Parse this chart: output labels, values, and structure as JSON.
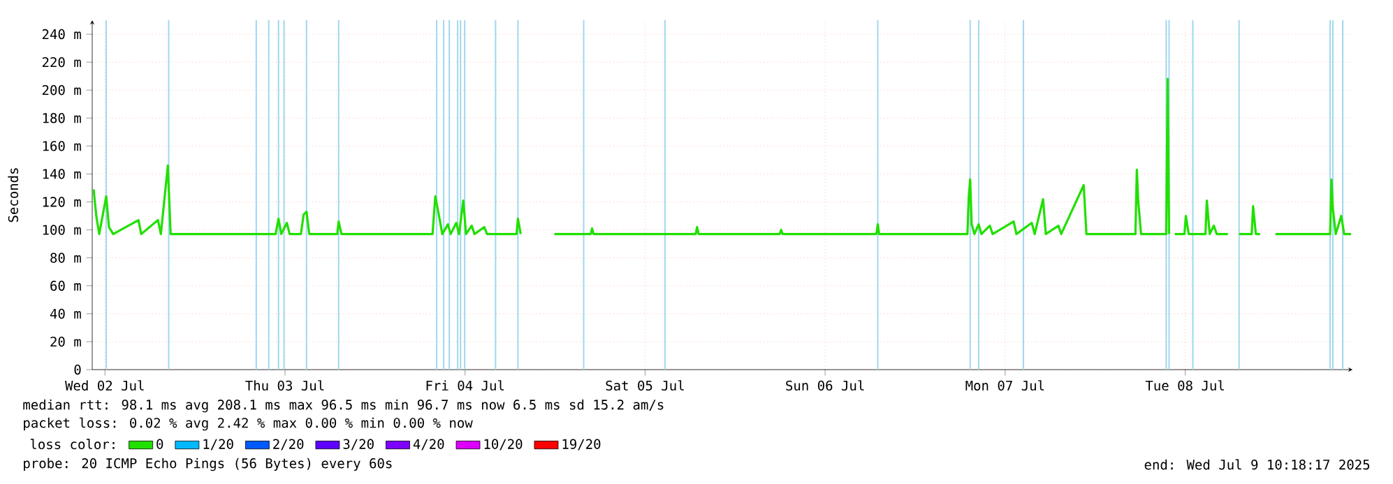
{
  "chart_data": {
    "type": "line",
    "ylabel": "Seconds",
    "x": [
      "2025-07-02T10:29",
      "2025-07-02T10:52",
      "2025-07-02T11:14",
      "2025-07-02T12:10",
      "2025-07-02T12:32",
      "2025-07-02T13:06",
      "2025-07-02T16:28",
      "2025-07-02T16:50",
      "2025-07-02T19:04",
      "2025-07-02T19:27",
      "2025-07-02T20:23",
      "2025-07-02T20:45",
      "2025-07-03T10:45",
      "2025-07-03T11:08",
      "2025-07-03T11:30",
      "2025-07-03T12:15",
      "2025-07-03T12:37",
      "2025-07-03T14:07",
      "2025-07-03T14:29",
      "2025-07-03T14:52",
      "2025-07-03T15:14",
      "2025-07-03T18:58",
      "2025-07-03T19:09",
      "2025-07-03T19:32",
      "2025-07-04T07:40",
      "2025-07-04T08:02",
      "2025-07-04T08:36",
      "2025-07-04T08:58",
      "2025-07-04T09:43",
      "2025-07-04T10:05",
      "2025-07-04T10:50",
      "2025-07-04T11:12",
      "2025-07-04T11:46",
      "2025-07-04T12:08",
      "2025-07-04T12:53",
      "2025-07-04T13:16",
      "2025-07-04T14:34",
      "2025-07-04T14:56",
      "2025-07-04T18:52",
      "2025-07-04T19:03",
      "2025-07-04T19:25",
      "2025-07-04T19:37",
      "2025-07-04T20:32",
      "2025-07-04T21:17",
      "2025-07-04T21:28",
      "2025-07-04T23:54",
      "2025-07-05T04:45",
      "2025-07-05T04:56",
      "2025-07-05T05:08",
      "2025-07-05T18:45",
      "2025-07-05T18:56",
      "2025-07-05T19:08",
      "2025-07-06T05:57",
      "2025-07-06T06:08",
      "2025-07-06T06:20",
      "2025-07-06T18:50",
      "2025-07-06T19:01",
      "2025-07-06T19:12",
      "2025-07-07T06:58",
      "2025-07-07T07:09",
      "2025-07-07T07:20",
      "2025-07-07T07:32",
      "2025-07-07T07:54",
      "2025-07-07T08:28",
      "2025-07-07T08:50",
      "2025-07-07T09:57",
      "2025-07-07T10:20",
      "2025-07-07T13:08",
      "2025-07-07T13:30",
      "2025-07-07T15:33",
      "2025-07-07T15:56",
      "2025-07-07T17:03",
      "2025-07-07T17:25",
      "2025-07-07T19:06",
      "2025-07-07T19:28",
      "2025-07-07T22:28",
      "2025-07-07T22:50",
      "2025-07-08T05:22",
      "2025-07-08T05:33",
      "2025-07-08T05:44",
      "2025-07-08T06:07",
      "2025-07-08T09:28",
      "2025-07-08T09:40",
      "2025-07-08T09:51",
      "2025-07-08T10:02",
      "2025-07-08T10:36",
      "2025-07-08T11:54",
      "2025-07-08T12:05",
      "2025-07-08T12:28",
      "2025-07-08T14:42",
      "2025-07-08T14:53",
      "2025-07-08T15:16",
      "2025-07-08T15:49",
      "2025-07-08T16:12",
      "2025-07-08T17:41",
      "2025-07-08T17:52",
      "2025-07-08T19:11",
      "2025-07-08T20:52",
      "2025-07-08T21:03",
      "2025-07-08T21:25",
      "2025-07-08T21:59",
      "2025-07-08T22:10",
      "2025-07-09T00:02",
      "2025-07-09T07:19",
      "2025-07-09T07:30",
      "2025-07-09T07:41",
      "2025-07-09T08:04",
      "2025-07-09T08:48",
      "2025-07-09T09:11",
      "2025-07-09T10:07"
    ],
    "series": [
      {
        "name": "0",
        "color": "#20e000",
        "values": [
          129,
          109,
          97,
          124,
          102,
          97,
          107,
          97,
          107,
          97,
          146,
          97,
          97,
          108,
          97,
          105,
          97,
          97,
          111,
          113,
          97,
          97,
          106,
          97,
          97,
          124,
          108,
          97,
          104,
          97,
          105,
          97,
          121,
          97,
          103,
          97,
          102,
          97,
          97,
          108,
          97,
          null,
          null,
          null,
          null,
          97,
          97,
          101,
          97,
          97,
          102,
          97,
          97,
          100,
          97,
          97,
          104,
          97,
          97,
          124,
          136,
          104,
          97,
          104,
          97,
          103,
          97,
          106,
          97,
          105,
          97,
          122,
          97,
          103,
          97,
          132,
          97,
          97,
          143,
          121,
          97,
          97,
          208,
          97,
          null,
          97,
          97,
          110,
          97,
          97,
          121,
          97,
          103,
          97,
          97,
          null,
          97,
          97,
          117,
          97,
          97,
          null,
          97,
          97,
          136,
          115,
          97,
          110,
          97,
          97
        ]
      },
      {
        "name": "1/20",
        "color": "#00b8ff",
        "values": [
          null,
          null,
          null,
          null,
          null,
          null,
          null,
          null,
          null,
          null,
          null,
          null,
          null,
          null,
          null,
          null,
          null,
          null,
          null,
          null,
          null,
          null,
          null,
          null,
          null,
          null,
          null,
          null,
          null,
          null,
          null,
          null,
          null,
          null,
          null,
          null,
          null,
          null,
          null,
          null,
          null,
          null,
          null,
          null,
          null,
          null,
          null,
          null,
          null,
          null,
          null,
          null,
          null,
          null,
          null,
          null,
          null,
          null,
          null,
          null,
          null,
          null,
          null,
          null,
          null,
          null,
          null,
          null,
          null,
          null,
          null,
          null,
          null,
          null,
          null,
          null,
          null,
          null,
          null,
          null,
          null,
          null,
          null,
          null,
          null,
          null,
          null,
          null,
          null,
          null,
          null,
          null,
          null,
          null,
          null,
          null,
          null,
          null,
          null,
          null,
          null,
          null,
          null,
          null,
          null,
          null,
          null,
          null,
          null,
          null
        ]
      },
      {
        "name": "2/20",
        "color": "#0059ff",
        "values": [
          null,
          null,
          null,
          null,
          null,
          null,
          null,
          null,
          null,
          null,
          null,
          null,
          null,
          null,
          null,
          null,
          null,
          null,
          null,
          null,
          null,
          null,
          null,
          null,
          null,
          null,
          null,
          null,
          null,
          null,
          null,
          null,
          null,
          null,
          null,
          null,
          null,
          null,
          null,
          null,
          null,
          null,
          null,
          null,
          null,
          null,
          null,
          null,
          null,
          null,
          null,
          null,
          null,
          null,
          null,
          null,
          null,
          null,
          null,
          null,
          null,
          null,
          null,
          null,
          null,
          null,
          null,
          null,
          null,
          null,
          null,
          null,
          null,
          null,
          null,
          null,
          null,
          null,
          null,
          null,
          null,
          null,
          null,
          null,
          null,
          null,
          null,
          null,
          null,
          null,
          null,
          null,
          null,
          null,
          null,
          null,
          null,
          null,
          null,
          null,
          null,
          null,
          null,
          null,
          null,
          null,
          null,
          null,
          null,
          null
        ]
      },
      {
        "name": "3/20",
        "color": "#5e00ff",
        "values": [
          null,
          null,
          null,
          null,
          null,
          null,
          null,
          null,
          null,
          null,
          null,
          null,
          null,
          null,
          null,
          null,
          null,
          null,
          null,
          null,
          null,
          null,
          null,
          null,
          null,
          null,
          null,
          null,
          null,
          null,
          null,
          null,
          null,
          null,
          null,
          null,
          null,
          null,
          null,
          null,
          null,
          null,
          null,
          null,
          null,
          null,
          null,
          null,
          null,
          null,
          null,
          null,
          null,
          null,
          null,
          null,
          null,
          null,
          null,
          null,
          null,
          null,
          null,
          null,
          null,
          null,
          null,
          null,
          null,
          null,
          null,
          null,
          null,
          null,
          null,
          null,
          null,
          null,
          null,
          null,
          null,
          null,
          null,
          null,
          null,
          null,
          null,
          null,
          null,
          null,
          null,
          null,
          null,
          null,
          null,
          null,
          null,
          null,
          null,
          null,
          null,
          null,
          null,
          null,
          null,
          null,
          null,
          null,
          null,
          null
        ]
      },
      {
        "name": "4/20",
        "color": "#7e00ff",
        "values": [
          null,
          null,
          null,
          null,
          null,
          null,
          null,
          null,
          null,
          null,
          null,
          null,
          null,
          null,
          null,
          null,
          null,
          null,
          null,
          null,
          null,
          null,
          null,
          null,
          null,
          null,
          null,
          null,
          null,
          null,
          null,
          null,
          null,
          null,
          null,
          null,
          null,
          null,
          null,
          null,
          null,
          null,
          null,
          null,
          null,
          null,
          null,
          null,
          null,
          null,
          null,
          null,
          null,
          null,
          null,
          null,
          null,
          null,
          null,
          null,
          null,
          null,
          null,
          null,
          null,
          null,
          null,
          null,
          null,
          null,
          null,
          null,
          null,
          null,
          null,
          null,
          null,
          null,
          null,
          null,
          null,
          null,
          null,
          null,
          null,
          null,
          null,
          null,
          null,
          null,
          null,
          null,
          null,
          null,
          null,
          null,
          null,
          null,
          null,
          null,
          null,
          null,
          null,
          null,
          null,
          null,
          null,
          null,
          null,
          null
        ]
      },
      {
        "name": "10/20",
        "color": "#dd00ff",
        "values": [
          null,
          null,
          null,
          null,
          null,
          null,
          null,
          null,
          null,
          null,
          null,
          null,
          null,
          null,
          null,
          null,
          null,
          null,
          null,
          null,
          null,
          null,
          null,
          null,
          null,
          null,
          null,
          null,
          null,
          null,
          null,
          null,
          null,
          null,
          null,
          null,
          null,
          null,
          null,
          null,
          null,
          null,
          null,
          null,
          null,
          null,
          null,
          null,
          null,
          null,
          null,
          null,
          null,
          null,
          null,
          null,
          null,
          null,
          null,
          null,
          null,
          null,
          null,
          null,
          null,
          null,
          null,
          null,
          null,
          null,
          null,
          null,
          null,
          null,
          null,
          null,
          null,
          null,
          null,
          null,
          null,
          null,
          null,
          null,
          null,
          null,
          null,
          null,
          null,
          null,
          null,
          null,
          null,
          null,
          null,
          null,
          null,
          null,
          null,
          null,
          null,
          null,
          null,
          null,
          null,
          null,
          null,
          null,
          null,
          null
        ]
      },
      {
        "name": "19/20",
        "color": "#ff0000",
        "values": [
          null,
          null,
          null,
          null,
          null,
          null,
          null,
          null,
          null,
          null,
          null,
          null,
          null,
          null,
          null,
          null,
          null,
          null,
          null,
          null,
          null,
          null,
          null,
          null,
          null,
          null,
          null,
          null,
          null,
          null,
          null,
          null,
          null,
          null,
          null,
          null,
          null,
          null,
          null,
          null,
          null,
          null,
          null,
          null,
          null,
          null,
          null,
          null,
          null,
          null,
          null,
          null,
          null,
          null,
          null,
          null,
          null,
          null,
          null,
          null,
          null,
          null,
          null,
          null,
          null,
          null,
          null,
          null,
          null,
          null,
          null,
          null,
          null,
          null,
          null,
          null,
          null,
          null,
          null,
          null,
          null,
          null,
          null,
          null,
          null,
          null,
          null,
          null,
          null,
          null,
          null,
          null,
          null,
          null,
          null,
          null,
          null,
          null,
          null,
          null,
          null,
          null,
          null,
          null,
          null,
          null,
          null,
          null,
          null,
          null
        ]
      }
    ],
    "legend_title": "loss color:",
    "legend": "bottom",
    "grid": true,
    "xlim": [
      "2025-07-02T10:18",
      "2025-07-09T10:18"
    ],
    "xticks": [
      {
        "value": "2025-07-02T12:00",
        "label": "Wed 02 Jul"
      },
      {
        "value": "2025-07-03T12:00",
        "label": "Thu 03 Jul"
      },
      {
        "value": "2025-07-04T12:00",
        "label": "Fri 04 Jul"
      },
      {
        "value": "2025-07-05T12:00",
        "label": "Sat 05 Jul"
      },
      {
        "value": "2025-07-06T12:00",
        "label": "Sun 06 Jul"
      },
      {
        "value": "2025-07-07T12:00",
        "label": "Mon 07 Jul"
      },
      {
        "value": "2025-07-08T12:00",
        "label": "Tue 08 Jul"
      }
    ],
    "ylim": [
      0,
      250
    ],
    "yticks": [
      0,
      {
        "value": 20,
        "label": "20 m"
      },
      {
        "value": 40,
        "label": "40 m"
      },
      {
        "value": 60,
        "label": "60 m"
      },
      {
        "value": 80,
        "label": "80 m"
      },
      {
        "value": 100,
        "label": "100 m"
      },
      {
        "value": 120,
        "label": "120 m"
      },
      {
        "value": 140,
        "label": "140 m"
      },
      {
        "value": 160,
        "label": "160 m"
      },
      {
        "value": 180,
        "label": "180 m"
      },
      {
        "value": 200,
        "label": "200 m"
      },
      {
        "value": 220,
        "label": "220 m"
      },
      {
        "value": 240,
        "label": "240 m"
      }
    ],
    "ref_lines": [
      {
        "axis": "x",
        "value": "2025-07-02T12:10",
        "color": "#9fd8ee"
      },
      {
        "axis": "x",
        "value": "2025-07-02T20:30",
        "color": "#9fd8ee"
      },
      {
        "axis": "x",
        "value": "2025-07-03T08:10",
        "color": "#9fd8ee"
      },
      {
        "axis": "x",
        "value": "2025-07-03T09:50",
        "color": "#9fd8ee"
      },
      {
        "axis": "x",
        "value": "2025-07-03T11:08",
        "color": "#9fd8ee"
      },
      {
        "axis": "x",
        "value": "2025-07-03T11:52",
        "color": "#9fd8ee"
      },
      {
        "axis": "x",
        "value": "2025-07-03T14:52",
        "color": "#9fd8ee"
      },
      {
        "axis": "x",
        "value": "2025-07-03T19:09",
        "color": "#9fd8ee"
      },
      {
        "axis": "x",
        "value": "2025-07-04T08:13",
        "color": "#9fd8ee"
      },
      {
        "axis": "x",
        "value": "2025-07-04T09:09",
        "color": "#9fd8ee"
      },
      {
        "axis": "x",
        "value": "2025-07-04T09:54",
        "color": "#9fd8ee"
      },
      {
        "axis": "x",
        "value": "2025-07-04T11:01",
        "color": "#9fd8ee"
      },
      {
        "axis": "x",
        "value": "2025-07-04T11:24",
        "color": "#9fd8ee"
      },
      {
        "axis": "x",
        "value": "2025-07-04T11:57",
        "color": "#9fd8ee"
      },
      {
        "axis": "x",
        "value": "2025-07-04T16:04",
        "color": "#9fd8ee"
      },
      {
        "axis": "x",
        "value": "2025-07-04T19:03",
        "color": "#9fd8ee"
      },
      {
        "axis": "x",
        "value": "2025-07-05T03:49",
        "color": "#9fd8ee"
      },
      {
        "axis": "x",
        "value": "2025-07-05T14:39",
        "color": "#9fd8ee"
      },
      {
        "axis": "x",
        "value": "2025-07-06T19:01",
        "color": "#9fd8ee"
      },
      {
        "axis": "x",
        "value": "2025-07-07T07:20",
        "color": "#9fd8ee"
      },
      {
        "axis": "x",
        "value": "2025-07-07T08:28",
        "color": "#9fd8ee"
      },
      {
        "axis": "x",
        "value": "2025-07-07T14:26",
        "color": "#9fd8ee"
      },
      {
        "axis": "x",
        "value": "2025-07-08T09:28",
        "color": "#9fd8ee"
      },
      {
        "axis": "x",
        "value": "2025-07-08T09:51",
        "color": "#9fd8ee"
      },
      {
        "axis": "x",
        "value": "2025-07-08T13:01",
        "color": "#9fd8ee"
      },
      {
        "axis": "x",
        "value": "2025-07-08T19:11",
        "color": "#9fd8ee"
      },
      {
        "axis": "x",
        "value": "2025-07-09T07:19",
        "color": "#9fd8ee"
      },
      {
        "axis": "x",
        "value": "2025-07-09T07:41",
        "color": "#9fd8ee"
      },
      {
        "axis": "x",
        "value": "2025-07-09T09:00",
        "color": "#9fd8ee"
      }
    ],
    "annotations": [
      "median rtt:  98.1 ms avg  208.1 ms max  96.5 ms min  96.7 ms now  6.5 ms sd  15.2   am/s",
      "packet loss: 0.02 % avg  2.42 % max  0.00 % min  0.00 % now",
      "probe:       20 ICMP Echo Pings (56 Bytes) every 60s",
      "end: Wed Jul  9 10:18:17 2025"
    ]
  }
}
